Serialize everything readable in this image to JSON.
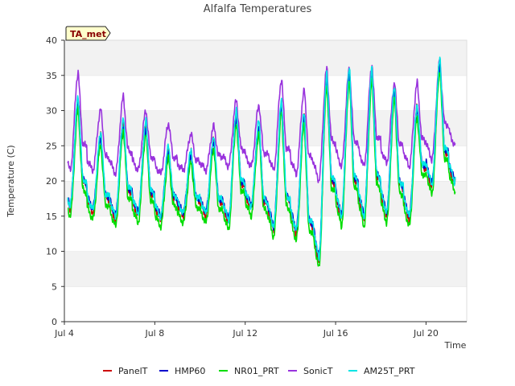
{
  "chart_data": {
    "type": "line",
    "title": "Alfalfa Temperatures",
    "xlabel": "Time",
    "ylabel": "Temperature (C)",
    "annotation": "TA_met",
    "xlim": [
      4.0,
      21.8
    ],
    "ylim": [
      0,
      40
    ],
    "yticks": [
      0,
      5,
      10,
      15,
      20,
      25,
      30,
      35,
      40
    ],
    "xticks": [
      {
        "value": 4,
        "label": "Jul 4"
      },
      {
        "value": 8,
        "label": "Jul 8"
      },
      {
        "value": 12,
        "label": "Jul 12"
      },
      {
        "value": 16,
        "label": "Jul 16"
      },
      {
        "value": 20,
        "label": "Jul 20"
      }
    ],
    "grid": "horizontal bands",
    "legend_position": "bottom",
    "days": [
      4,
      5,
      6,
      7,
      8,
      9,
      10,
      11,
      12,
      13,
      14,
      15,
      16,
      17,
      18,
      19,
      20,
      21
    ],
    "daily_max": {
      "base": [
        31.0,
        26.0,
        28.0,
        27.5,
        24.0,
        23.5,
        25.5,
        29.0,
        27.5,
        30.5,
        29.0,
        34.5,
        35.0,
        35.0,
        32.5,
        30.0,
        36.5,
        35.0
      ],
      "sonic": [
        35.5,
        30.2,
        32.0,
        30.0,
        28.2,
        26.7,
        27.8,
        31.5,
        30.8,
        34.5,
        33.0,
        36.0,
        36.0,
        36.5,
        34.0,
        34.0,
        37.0,
        37.5
      ]
    },
    "daily_min": {
      "base": [
        16.0,
        15.5,
        14.5,
        15.0,
        14.5,
        15.0,
        15.0,
        14.0,
        16.0,
        13.0,
        12.5,
        8.5,
        14.5,
        14.5,
        15.0,
        14.5,
        19.0,
        19.5
      ],
      "sonic": [
        21.5,
        21.5,
        21.0,
        21.5,
        21.0,
        21.5,
        21.5,
        22.0,
        22.0,
        21.5,
        21.0,
        20.0,
        22.0,
        22.0,
        22.5,
        22.0,
        23.0,
        25.0
      ]
    },
    "series": [
      {
        "name": "PanelT",
        "color": "#cc0000",
        "offset_max": 0.6,
        "offset_min": 0.0
      },
      {
        "name": "HMP60",
        "color": "#0000cc",
        "offset_max": 0.0,
        "offset_min": 0.6
      },
      {
        "name": "NR01_PRT",
        "color": "#00dd00",
        "offset_max": -0.8,
        "offset_min": -1.0
      },
      {
        "name": "SonicT",
        "color": "#9933dd",
        "offset_max": 0.0,
        "offset_min": 0.0
      },
      {
        "name": "AM25T_PRT",
        "color": "#00e5e5",
        "offset_max": 1.0,
        "offset_min": 0.4
      }
    ]
  }
}
